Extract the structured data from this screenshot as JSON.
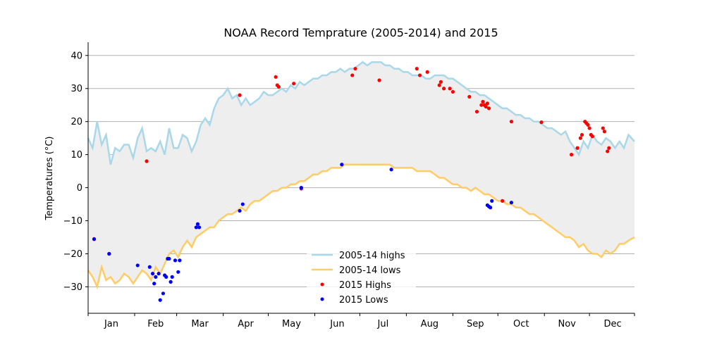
{
  "chart_data": {
    "type": "line",
    "title": "NOAA Record Temprature (2005-2014) and 2015",
    "xlabel": "",
    "ylabel": "Temperatures (°C)",
    "ylim": [
      -38,
      44
    ],
    "xlim": [
      1,
      365
    ],
    "yticks": [
      -30,
      -20,
      -10,
      0,
      10,
      20,
      30,
      40
    ],
    "month_labels": [
      "Jan",
      "Feb",
      "Mar",
      "Apr",
      "May",
      "Jun",
      "Jul",
      "Aug",
      "Sep",
      "Oct",
      "Nov",
      "Dec"
    ],
    "grid": "horizontal",
    "shaded_between": "2005-14 highs and 2005-14 lows",
    "legend_position": "bottom-center",
    "colors": {
      "highs": "#a8d8ea",
      "lows": "#ffcc66",
      "shade": "#eeeeee",
      "highs_2015": "#ff0000",
      "lows_2015": "#0000ff"
    },
    "series": [
      {
        "name": "2005-14 highs",
        "style": "line",
        "points": [
          [
            1,
            15
          ],
          [
            4,
            12
          ],
          [
            7,
            20
          ],
          [
            10,
            13
          ],
          [
            13,
            16
          ],
          [
            16,
            7
          ],
          [
            19,
            12
          ],
          [
            22,
            11
          ],
          [
            25,
            13
          ],
          [
            28,
            13
          ],
          [
            31,
            9
          ],
          [
            34,
            15
          ],
          [
            37,
            18
          ],
          [
            40,
            11
          ],
          [
            43,
            12
          ],
          [
            46,
            11
          ],
          [
            49,
            14
          ],
          [
            52,
            10
          ],
          [
            55,
            18
          ],
          [
            58,
            12
          ],
          [
            61,
            12
          ],
          [
            64,
            16
          ],
          [
            67,
            15
          ],
          [
            70,
            11
          ],
          [
            73,
            14
          ],
          [
            76,
            19
          ],
          [
            79,
            21
          ],
          [
            82,
            19
          ],
          [
            85,
            24
          ],
          [
            88,
            27
          ],
          [
            91,
            28
          ],
          [
            94,
            30
          ],
          [
            97,
            27
          ],
          [
            100,
            28
          ],
          [
            103,
            25
          ],
          [
            106,
            27
          ],
          [
            109,
            25
          ],
          [
            112,
            26
          ],
          [
            115,
            27
          ],
          [
            118,
            29
          ],
          [
            121,
            28
          ],
          [
            124,
            28
          ],
          [
            127,
            29
          ],
          [
            130,
            30
          ],
          [
            133,
            29
          ],
          [
            136,
            31
          ],
          [
            139,
            30
          ],
          [
            142,
            32
          ],
          [
            145,
            31
          ],
          [
            148,
            32
          ],
          [
            151,
            33
          ],
          [
            154,
            33
          ],
          [
            157,
            34
          ],
          [
            160,
            34
          ],
          [
            163,
            35
          ],
          [
            166,
            35
          ],
          [
            169,
            36
          ],
          [
            172,
            35
          ],
          [
            175,
            36
          ],
          [
            178,
            36
          ],
          [
            181,
            37
          ],
          [
            184,
            38
          ],
          [
            187,
            37
          ],
          [
            190,
            38
          ],
          [
            193,
            38
          ],
          [
            196,
            38
          ],
          [
            199,
            37
          ],
          [
            202,
            37
          ],
          [
            205,
            36
          ],
          [
            208,
            36
          ],
          [
            211,
            35
          ],
          [
            214,
            35
          ],
          [
            217,
            34
          ],
          [
            220,
            34
          ],
          [
            223,
            34
          ],
          [
            226,
            33
          ],
          [
            229,
            33
          ],
          [
            232,
            34
          ],
          [
            235,
            34
          ],
          [
            238,
            34
          ],
          [
            241,
            33
          ],
          [
            244,
            33
          ],
          [
            247,
            32
          ],
          [
            250,
            31
          ],
          [
            253,
            30
          ],
          [
            256,
            29
          ],
          [
            259,
            29
          ],
          [
            262,
            28
          ],
          [
            265,
            28
          ],
          [
            268,
            27
          ],
          [
            271,
            26
          ],
          [
            274,
            25
          ],
          [
            277,
            24
          ],
          [
            280,
            24
          ],
          [
            283,
            23
          ],
          [
            286,
            22
          ],
          [
            289,
            22
          ],
          [
            292,
            21
          ],
          [
            295,
            21
          ],
          [
            298,
            20
          ],
          [
            301,
            20
          ],
          [
            304,
            19
          ],
          [
            307,
            18
          ],
          [
            310,
            18
          ],
          [
            313,
            17
          ],
          [
            316,
            16
          ],
          [
            319,
            17
          ],
          [
            322,
            14
          ],
          [
            325,
            12
          ],
          [
            328,
            10
          ],
          [
            331,
            14
          ],
          [
            334,
            12
          ],
          [
            337,
            16
          ],
          [
            340,
            14
          ],
          [
            343,
            13
          ],
          [
            346,
            15
          ],
          [
            349,
            14
          ],
          [
            352,
            12
          ],
          [
            355,
            14
          ],
          [
            358,
            12
          ],
          [
            361,
            16
          ],
          [
            365,
            14
          ]
        ]
      },
      {
        "name": "2005-14 lows",
        "style": "line",
        "points": [
          [
            1,
            -25
          ],
          [
            4,
            -27
          ],
          [
            7,
            -30
          ],
          [
            10,
            -24
          ],
          [
            13,
            -28
          ],
          [
            16,
            -27
          ],
          [
            19,
            -29
          ],
          [
            22,
            -28
          ],
          [
            25,
            -26
          ],
          [
            28,
            -27
          ],
          [
            31,
            -29
          ],
          [
            34,
            -27
          ],
          [
            37,
            -25
          ],
          [
            40,
            -26
          ],
          [
            43,
            -28
          ],
          [
            46,
            -24
          ],
          [
            49,
            -26
          ],
          [
            52,
            -23
          ],
          [
            55,
            -20
          ],
          [
            58,
            -19
          ],
          [
            61,
            -21
          ],
          [
            64,
            -18
          ],
          [
            67,
            -16
          ],
          [
            70,
            -18
          ],
          [
            73,
            -15
          ],
          [
            76,
            -14
          ],
          [
            79,
            -13
          ],
          [
            82,
            -12
          ],
          [
            85,
            -12
          ],
          [
            88,
            -10
          ],
          [
            91,
            -9
          ],
          [
            94,
            -8
          ],
          [
            97,
            -8
          ],
          [
            100,
            -7
          ],
          [
            103,
            -6
          ],
          [
            106,
            -7
          ],
          [
            109,
            -5
          ],
          [
            112,
            -4
          ],
          [
            115,
            -4
          ],
          [
            118,
            -3
          ],
          [
            121,
            -2
          ],
          [
            124,
            -1
          ],
          [
            127,
            -1
          ],
          [
            130,
            0
          ],
          [
            133,
            0
          ],
          [
            136,
            1
          ],
          [
            139,
            1
          ],
          [
            142,
            2
          ],
          [
            145,
            2
          ],
          [
            148,
            3
          ],
          [
            151,
            4
          ],
          [
            154,
            4
          ],
          [
            157,
            5
          ],
          [
            160,
            5
          ],
          [
            163,
            6
          ],
          [
            166,
            6
          ],
          [
            169,
            6
          ],
          [
            172,
            7
          ],
          [
            175,
            7
          ],
          [
            178,
            7
          ],
          [
            181,
            7
          ],
          [
            184,
            7
          ],
          [
            187,
            7
          ],
          [
            190,
            7
          ],
          [
            193,
            7
          ],
          [
            196,
            7
          ],
          [
            199,
            7
          ],
          [
            202,
            7
          ],
          [
            205,
            6
          ],
          [
            208,
            6
          ],
          [
            211,
            6
          ],
          [
            214,
            6
          ],
          [
            217,
            6
          ],
          [
            220,
            5
          ],
          [
            223,
            5
          ],
          [
            226,
            5
          ],
          [
            229,
            5
          ],
          [
            232,
            4
          ],
          [
            235,
            3
          ],
          [
            238,
            3
          ],
          [
            241,
            2
          ],
          [
            244,
            1
          ],
          [
            247,
            1
          ],
          [
            250,
            0
          ],
          [
            253,
            0
          ],
          [
            256,
            -1
          ],
          [
            259,
            0
          ],
          [
            262,
            -1
          ],
          [
            265,
            -2
          ],
          [
            268,
            -2
          ],
          [
            271,
            -3
          ],
          [
            274,
            -4
          ],
          [
            277,
            -4
          ],
          [
            280,
            -5
          ],
          [
            283,
            -5
          ],
          [
            286,
            -6
          ],
          [
            289,
            -6
          ],
          [
            292,
            -7
          ],
          [
            295,
            -8
          ],
          [
            298,
            -8
          ],
          [
            301,
            -9
          ],
          [
            304,
            -10
          ],
          [
            307,
            -11
          ],
          [
            310,
            -12
          ],
          [
            313,
            -13
          ],
          [
            316,
            -14
          ],
          [
            319,
            -15
          ],
          [
            322,
            -15
          ],
          [
            325,
            -16
          ],
          [
            328,
            -18
          ],
          [
            331,
            -17
          ],
          [
            334,
            -19
          ],
          [
            337,
            -20
          ],
          [
            340,
            -20
          ],
          [
            343,
            -21
          ],
          [
            346,
            -19
          ],
          [
            349,
            -20
          ],
          [
            352,
            -19
          ],
          [
            355,
            -17
          ],
          [
            358,
            -17
          ],
          [
            361,
            -16
          ],
          [
            365,
            -15
          ]
        ]
      },
      {
        "name": "2015 Highs",
        "style": "points",
        "points": [
          [
            5,
            -15.5
          ],
          [
            15,
            -20
          ],
          [
            40,
            8
          ],
          [
            102,
            28
          ],
          [
            126,
            33.5
          ],
          [
            127,
            31
          ],
          [
            128,
            30.5
          ],
          [
            138,
            31.5
          ],
          [
            143,
            -0.3
          ],
          [
            177,
            34
          ],
          [
            179,
            36
          ],
          [
            195,
            32.5
          ],
          [
            220,
            36
          ],
          [
            222,
            34
          ],
          [
            227,
            35
          ],
          [
            235,
            31
          ],
          [
            236,
            32
          ],
          [
            238,
            30
          ],
          [
            242,
            30
          ],
          [
            244,
            29
          ],
          [
            255,
            27.5
          ],
          [
            260,
            23
          ],
          [
            263,
            25
          ],
          [
            264,
            26
          ],
          [
            265,
            25
          ],
          [
            266,
            24.5
          ],
          [
            267,
            25.5
          ],
          [
            268,
            24
          ],
          [
            277,
            -4
          ],
          [
            283,
            20
          ],
          [
            303,
            19.8
          ],
          [
            323,
            10
          ],
          [
            327,
            12
          ],
          [
            329,
            15
          ],
          [
            330,
            16
          ],
          [
            332,
            20
          ],
          [
            333,
            19.5
          ],
          [
            334,
            19
          ],
          [
            335,
            18
          ],
          [
            336,
            16
          ],
          [
            337,
            15.5
          ],
          [
            344,
            18
          ],
          [
            345,
            17
          ],
          [
            347,
            11
          ],
          [
            348,
            12
          ]
        ]
      },
      {
        "name": "2015 Lows",
        "style": "points",
        "points": [
          [
            5,
            -15.6
          ],
          [
            15,
            -20
          ],
          [
            34,
            -23.5
          ],
          [
            42,
            -24
          ],
          [
            44,
            -26
          ],
          [
            45,
            -29
          ],
          [
            46,
            -27
          ],
          [
            48,
            -26
          ],
          [
            49,
            -34
          ],
          [
            51,
            -32
          ],
          [
            52,
            -26.5
          ],
          [
            53,
            -27
          ],
          [
            54,
            -21.5
          ],
          [
            55,
            -21.5
          ],
          [
            56,
            -28.5
          ],
          [
            57,
            -27
          ],
          [
            59,
            -22
          ],
          [
            61,
            -25.5
          ],
          [
            62,
            -22
          ],
          [
            73,
            -12
          ],
          [
            74,
            -11
          ],
          [
            75,
            -12
          ],
          [
            102,
            -7
          ],
          [
            104,
            -5
          ],
          [
            143,
            0
          ],
          [
            170,
            7
          ],
          [
            203,
            5.5
          ],
          [
            267,
            -5.3
          ],
          [
            268,
            -5.7
          ],
          [
            269,
            -6
          ],
          [
            270,
            -4
          ],
          [
            283,
            -4.5
          ]
        ]
      }
    ]
  }
}
